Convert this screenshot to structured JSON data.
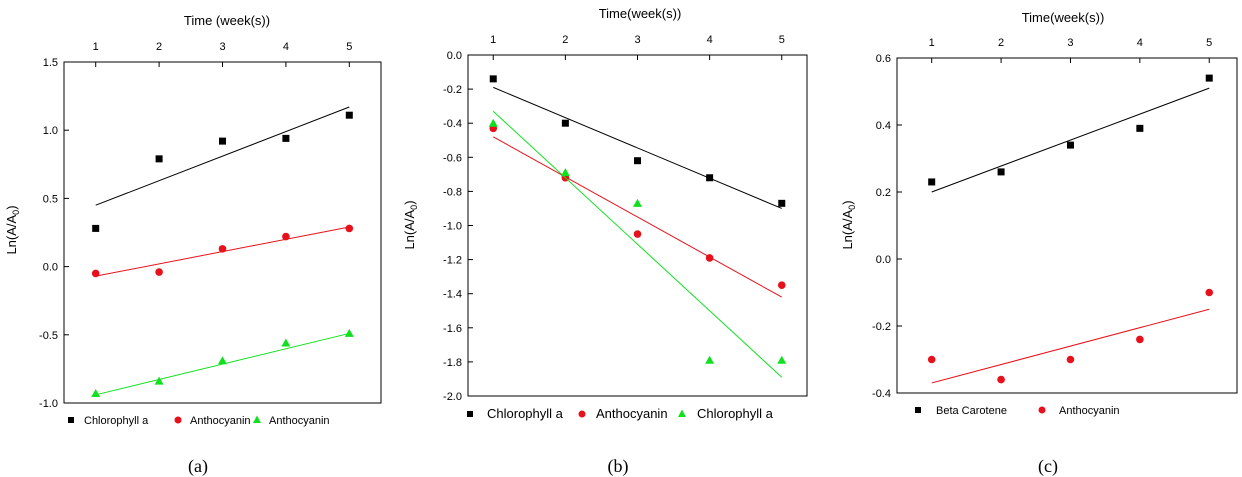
{
  "chart_data": [
    {
      "type": "scatter",
      "caption": "(a)",
      "xlabel": "Time (week(s))",
      "ylabel_main": "Ln(A/A",
      "ylabel_sub": "0",
      "ylabel_tail": ")",
      "x_ticks": [
        "1",
        "2",
        "3",
        "4",
        "5"
      ],
      "y_ticks": [
        "-1.0",
        "-0.5",
        "0.0",
        "0.5",
        "1.0",
        "1.5"
      ],
      "xlim": [
        0.5,
        5.5
      ],
      "ylim": [
        -1.0,
        1.5
      ],
      "x_axis_position": "top",
      "grid": false,
      "legend_position": "bottom",
      "series": [
        {
          "name": "Chlorophyll a",
          "marker": "square",
          "color": "#000000",
          "x": [
            1,
            2,
            3,
            4,
            5
          ],
          "y": [
            0.28,
            0.79,
            0.92,
            0.94,
            1.11
          ],
          "fit": [
            0.45,
            1.17
          ]
        },
        {
          "name": "Anthocyanin",
          "marker": "circle",
          "color": "#e8101a",
          "x": [
            1,
            2,
            3,
            4,
            5
          ],
          "y": [
            -0.05,
            -0.04,
            0.13,
            0.22,
            0.28
          ],
          "fit": [
            -0.07,
            0.29
          ]
        },
        {
          "name": "Anthocyanin",
          "marker": "triangle",
          "color": "#10e020",
          "x": [
            1,
            2,
            3,
            4,
            5
          ],
          "y": [
            -0.93,
            -0.84,
            -0.69,
            -0.56,
            -0.49
          ],
          "fit": [
            -0.94,
            -0.49
          ]
        }
      ]
    },
    {
      "type": "scatter",
      "caption": "(b)",
      "xlabel": "Time(week(s))",
      "ylabel_main": "Ln(A/A",
      "ylabel_sub": "0",
      "ylabel_tail": ")",
      "x_ticks": [
        "1",
        "2",
        "3",
        "4",
        "5"
      ],
      "y_ticks": [
        "-2.0",
        "-1.8",
        "-1.6",
        "-1.4",
        "-1.2",
        "-1.0",
        "-0.8",
        "-0.6",
        "-0.4",
        "-0.2",
        "0.0"
      ],
      "xlim": [
        0.65,
        5.35
      ],
      "ylim": [
        -2.0,
        0.0
      ],
      "x_axis_position": "top",
      "grid": false,
      "legend_position": "bottom",
      "series": [
        {
          "name": "Chlorophyll a",
          "marker": "square",
          "color": "#000000",
          "x": [
            1,
            2,
            3,
            4,
            5
          ],
          "y": [
            -0.14,
            -0.4,
            -0.62,
            -0.72,
            -0.87
          ],
          "fit": [
            -0.19,
            -0.9
          ]
        },
        {
          "name": "Anthocyanin",
          "marker": "circle",
          "color": "#e8101a",
          "x": [
            1,
            2,
            3,
            4,
            5
          ],
          "y": [
            -0.43,
            -0.72,
            -1.05,
            -1.19,
            -1.35
          ],
          "fit": [
            -0.48,
            -1.42
          ]
        },
        {
          "name": "Chlorophyll a",
          "marker": "triangle",
          "color": "#10e020",
          "x": [
            1,
            2,
            3,
            4,
            5
          ],
          "y": [
            -0.4,
            -0.69,
            -0.87,
            -1.79,
            -1.79
          ],
          "fit": [
            -0.33,
            -1.89
          ]
        }
      ]
    },
    {
      "type": "scatter",
      "caption": "(c)",
      "xlabel": "Time(week(s))",
      "ylabel_main": "Ln(A/A",
      "ylabel_sub": "0",
      "ylabel_tail": ")",
      "x_ticks": [
        "1",
        "2",
        "3",
        "4",
        "5"
      ],
      "y_ticks": [
        "-0.4",
        "-0.2",
        "0.0",
        "0.2",
        "0.4",
        "0.6"
      ],
      "xlim": [
        0.5,
        5.4
      ],
      "ylim": [
        -0.4,
        0.6
      ],
      "x_axis_position": "top",
      "grid": false,
      "legend_position": "bottom",
      "series": [
        {
          "name": "Beta Carotene",
          "marker": "square",
          "color": "#000000",
          "x": [
            1,
            2,
            3,
            4,
            5
          ],
          "y": [
            0.23,
            0.26,
            0.34,
            0.39,
            0.54
          ],
          "fit": [
            0.2,
            0.51
          ]
        },
        {
          "name": "Anthocyanin",
          "marker": "circle",
          "color": "#e8101a",
          "x": [
            1,
            2,
            3,
            4,
            5
          ],
          "y": [
            -0.3,
            -0.36,
            -0.3,
            -0.24,
            -0.1
          ],
          "fit": [
            -0.37,
            -0.15
          ]
        }
      ]
    }
  ]
}
